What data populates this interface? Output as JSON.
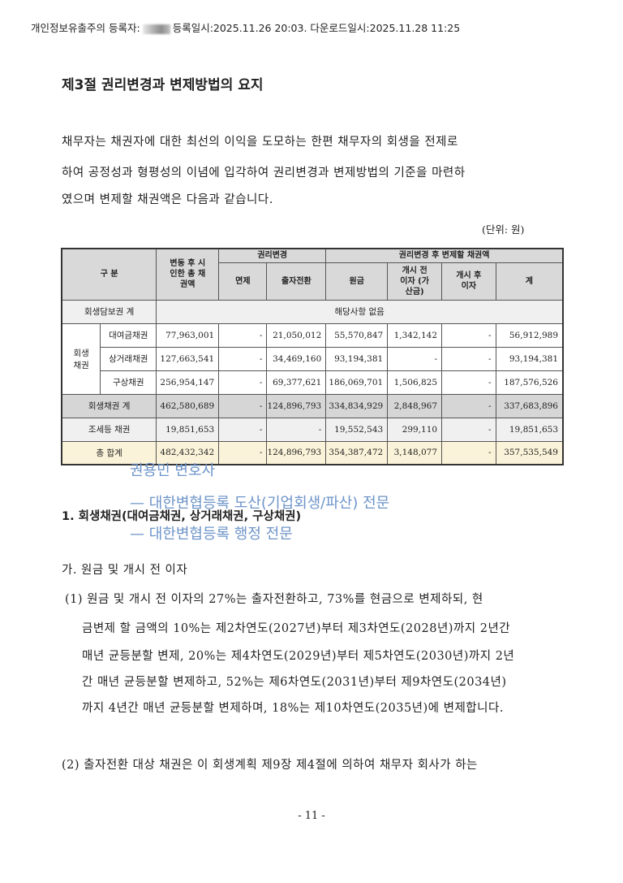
{
  "header": {
    "prefix": "개인정보유출주의 등록자:",
    "suffix": "등록일시:2025.11.26 20:03. 다운로드일시:2025.11.28 11:25"
  },
  "title": "제3절 권리변경과 변제방법의 요지",
  "intro": [
    "채무자는 채권자에 대한 최선의 이익을 도모하는 한편 채무자의 회생을 전제로",
    "하여 공정성과 형평성의 이념에 입각하여 권리변경과 변제방법의 기준을 마련하",
    "였으며 변제할 채권액은 다음과 같습니다."
  ],
  "unit": "(단위: 원)",
  "table": {
    "headers": {
      "category": "구 분",
      "total_claim": "변동 후 시인한 총 채권액",
      "rights_change": "권리변경",
      "remission": "면제",
      "conversion": "출자전환",
      "after_change": "권리변경 후 변제할 채권액",
      "principal": "원금",
      "pre_interest": "개시 전 이자 (가산금)",
      "post_interest": "개시 후 이자",
      "sum": "계"
    },
    "secured": {
      "label": "회생담보권 계",
      "note": "해당사항 없음"
    },
    "group_label": "회생 채권",
    "rows": [
      {
        "label": "대여금채권",
        "values": [
          "77,963,001",
          "-",
          "21,050,012",
          "55,570,847",
          "1,342,142",
          "-",
          "56,912,989"
        ]
      },
      {
        "label": "상거래채권",
        "values": [
          "127,663,541",
          "-",
          "34,469,160",
          "93,194,381",
          "-",
          "-",
          "93,194,381"
        ]
      },
      {
        "label": "구상채권",
        "values": [
          "256,954,147",
          "-",
          "69,377,621",
          "186,069,701",
          "1,506,825",
          "-",
          "187,576,526"
        ]
      }
    ],
    "subtotal": {
      "label": "회생채권 계",
      "values": [
        "462,580,689",
        "-",
        "124,896,793",
        "334,834,929",
        "2,848,967",
        "-",
        "337,683,896"
      ]
    },
    "tax": {
      "label": "조세등 채권",
      "values": [
        "19,851,653",
        "-",
        "-",
        "19,552,543",
        "299,110",
        "-",
        "19,851,653"
      ]
    },
    "total": {
      "label": "총 합계",
      "values": [
        "482,432,342",
        "-",
        "124,896,793",
        "354,387,472",
        "3,148,077",
        "-",
        "357,535,549"
      ]
    }
  },
  "overlay": [
    "권용민 변호사",
    "— 대한변협등록 도산(기업회생/파산) 전문",
    "— 대한변협등록 행정 전문"
  ],
  "section1": "1. 회생채권(대여금채권, 상거래채권, 구상채권)",
  "sub_a": "가. 원금 및 개시 전 이자",
  "para1": [
    "(1) 원금 및 개시 전 이자의 27%는 출자전환하고, 73%를 현금으로 변제하되, 현",
    "금변제 할 금액의 10%는 제2차연도(2027년)부터 제3차연도(2028년)까지 2년간",
    "매년 균등분할 변제, 20%는 제4차연도(2029년)부터 제5차연도(2030년)까지 2년",
    "간 매년 균등분할 변제하고, 52%는 제6차연도(2031년)부터 제9차연도(2034년)",
    "까지 4년간 매년 균등분할 변제하며, 18%는 제10차연도(2035년)에 변제합니다."
  ],
  "para2": "(2) 출자전환 대상 채권은 이 회생계획 제9장 제4절에 의하여 채무자 회사가 하는",
  "page_number": "- 11 -"
}
